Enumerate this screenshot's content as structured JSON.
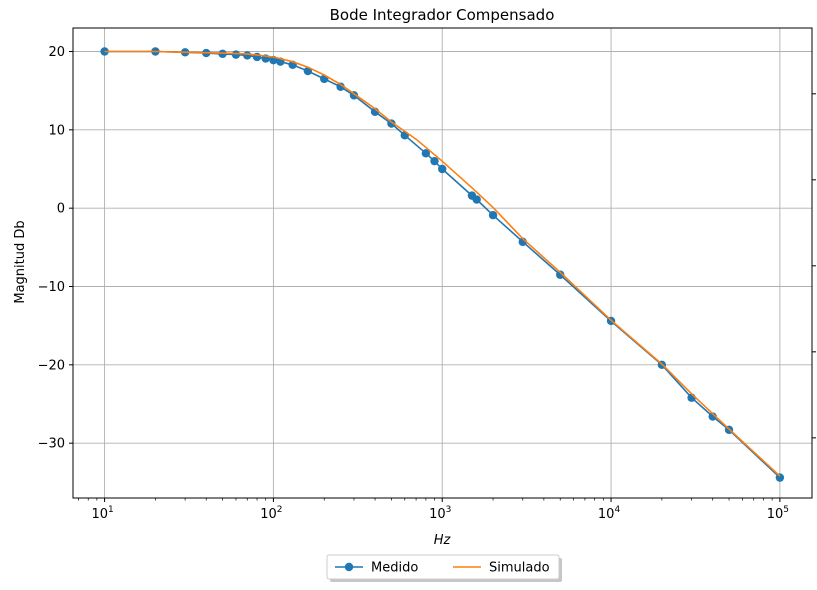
{
  "chart_data": {
    "type": "line",
    "title": "Bode Integrador Compensado",
    "xlabel": "Hz",
    "ylabel": "Magnitud Db",
    "xscale": "log",
    "xlim": [
      6.5,
      155000
    ],
    "ylim": [
      -37,
      23
    ],
    "x_ticks": [
      {
        "value": 10,
        "base": "10",
        "exp": "1"
      },
      {
        "value": 100,
        "base": "10",
        "exp": "2"
      },
      {
        "value": 1000,
        "base": "10",
        "exp": "3"
      },
      {
        "value": 10000,
        "base": "10",
        "exp": "4"
      },
      {
        "value": 100000,
        "base": "10",
        "exp": "5"
      }
    ],
    "y_ticks": [
      {
        "value": 20,
        "label": "20"
      },
      {
        "value": 10,
        "label": "10"
      },
      {
        "value": 0,
        "label": "0"
      },
      {
        "value": -10,
        "label": "−10"
      },
      {
        "value": -20,
        "label": "−20"
      },
      {
        "value": -30,
        "label": "−30"
      }
    ],
    "grid": true,
    "legend_placement": "bottom-center",
    "series": [
      {
        "name": "Medido",
        "color": "#1f77b4",
        "marker": "circle",
        "x": [
          10,
          20,
          30,
          40,
          50,
          60,
          70,
          80,
          90,
          100,
          110,
          130,
          160,
          200,
          250,
          300,
          400,
          500,
          600,
          800,
          900,
          1000,
          1500,
          1600,
          2000,
          3000,
          5000,
          10000,
          20000,
          30000,
          40000,
          50000,
          100000
        ],
        "y": [
          20.0,
          20.0,
          19.9,
          19.8,
          19.7,
          19.6,
          19.5,
          19.3,
          19.1,
          18.9,
          18.7,
          18.3,
          17.5,
          16.5,
          15.5,
          14.4,
          12.3,
          10.8,
          9.3,
          7.0,
          6.0,
          5.0,
          1.6,
          1.1,
          -0.9,
          -4.3,
          -8.5,
          -14.4,
          -20.0,
          -24.2,
          -26.6,
          -28.3,
          -34.4
        ]
      },
      {
        "name": "Simulado",
        "color": "#ff7f0e",
        "x": [
          10,
          20,
          30,
          50,
          70,
          100,
          130,
          160,
          200,
          250,
          300,
          400,
          500,
          700,
          1000,
          1500,
          2000,
          3000,
          5000,
          10000,
          20000,
          30000,
          50000,
          100000
        ],
        "y": [
          20.0,
          20.0,
          19.9,
          19.8,
          19.7,
          19.3,
          18.7,
          18.0,
          17.0,
          15.8,
          14.6,
          12.7,
          11.0,
          8.8,
          6.0,
          2.6,
          0.1,
          -3.9,
          -8.2,
          -14.3,
          -19.9,
          -23.7,
          -28.2,
          -34.2
        ]
      }
    ]
  }
}
